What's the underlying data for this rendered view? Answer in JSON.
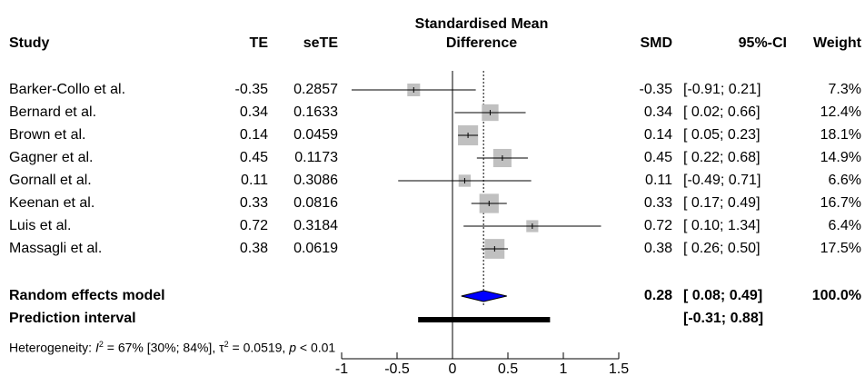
{
  "header": {
    "study": "Study",
    "te": "TE",
    "sete": "seTE",
    "plot_title_line1": "Standardised Mean",
    "plot_title_line2": "Difference",
    "smd": "SMD",
    "ci": "95%-CI",
    "weight": "Weight"
  },
  "studies": [
    {
      "name": "Barker-Collo et al.",
      "te": "-0.35",
      "sete": "0.2857",
      "smd": "-0.35",
      "ci": "[-0.91; 0.21]",
      "weight": "7.3%"
    },
    {
      "name": "Bernard et al.",
      "te": "0.34",
      "sete": "0.1633",
      "smd": "0.34",
      "ci": "[ 0.02; 0.66]",
      "weight": "12.4%"
    },
    {
      "name": "Brown et al.",
      "te": "0.14",
      "sete": "0.0459",
      "smd": "0.14",
      "ci": "[ 0.05; 0.23]",
      "weight": "18.1%"
    },
    {
      "name": "Gagner et al.",
      "te": "0.45",
      "sete": "0.1173",
      "smd": "0.45",
      "ci": "[ 0.22; 0.68]",
      "weight": "14.9%"
    },
    {
      "name": "Gornall et al.",
      "te": "0.11",
      "sete": "0.3086",
      "smd": "0.11",
      "ci": "[-0.49; 0.71]",
      "weight": "6.6%"
    },
    {
      "name": "Keenan et al.",
      "te": "0.33",
      "sete": "0.0816",
      "smd": "0.33",
      "ci": "[ 0.17; 0.49]",
      "weight": "16.7%"
    },
    {
      "name": "Luis et al.",
      "te": "0.72",
      "sete": "0.3184",
      "smd": "0.72",
      "ci": "[ 0.10; 1.34]",
      "weight": "6.4%"
    },
    {
      "name": "Massagli et al.",
      "te": "0.38",
      "sete": "0.0619",
      "smd": "0.38",
      "ci": "[ 0.26; 0.50]",
      "weight": "17.5%"
    }
  ],
  "summary": {
    "random_label": "Random effects model",
    "random_smd": "0.28",
    "random_ci": "[ 0.08; 0.49]",
    "random_weight": "100.0%",
    "prediction_label": "Prediction interval",
    "prediction_ci": "[-0.31; 0.88]"
  },
  "heterogeneity": {
    "prefix": "Heterogeneity: ",
    "i2_symbol": "I",
    "i2_value": " = 67% [30%; 84%], ",
    "tau_symbol": "τ",
    "tau_value": " = 0.0519, ",
    "p_symbol": "p",
    "p_value": " < 0.01"
  },
  "colors": {
    "box": "#c0c0c0",
    "diamond": "#0000ff",
    "line": "#000000"
  },
  "chart_data": {
    "type": "forest",
    "title": "Standardised Mean Difference",
    "xlim": [
      -1,
      1.5
    ],
    "ticks": [
      -1,
      -0.5,
      0,
      0.5,
      1,
      1.5
    ],
    "tick_labels": [
      "-1",
      "-0.5",
      "0",
      "0.5",
      "1",
      "1.5"
    ],
    "null_line": 0,
    "pooled_line": 0.28,
    "studies": [
      {
        "name": "Barker-Collo et al.",
        "est": -0.35,
        "lo": -0.91,
        "hi": 0.21,
        "weight": 7.3
      },
      {
        "name": "Bernard et al.",
        "est": 0.34,
        "lo": 0.02,
        "hi": 0.66,
        "weight": 12.4
      },
      {
        "name": "Brown et al.",
        "est": 0.14,
        "lo": 0.05,
        "hi": 0.23,
        "weight": 18.1
      },
      {
        "name": "Gagner et al.",
        "est": 0.45,
        "lo": 0.22,
        "hi": 0.68,
        "weight": 14.9
      },
      {
        "name": "Gornall et al.",
        "est": 0.11,
        "lo": -0.49,
        "hi": 0.71,
        "weight": 6.6
      },
      {
        "name": "Keenan et al.",
        "est": 0.33,
        "lo": 0.17,
        "hi": 0.49,
        "weight": 16.7
      },
      {
        "name": "Luis et al.",
        "est": 0.72,
        "lo": 0.1,
        "hi": 1.34,
        "weight": 6.4
      },
      {
        "name": "Massagli et al.",
        "est": 0.38,
        "lo": 0.26,
        "hi": 0.5,
        "weight": 17.5
      }
    ],
    "random_effects": {
      "est": 0.28,
      "lo": 0.08,
      "hi": 0.49
    },
    "prediction_interval": {
      "lo": -0.31,
      "hi": 0.88
    }
  }
}
